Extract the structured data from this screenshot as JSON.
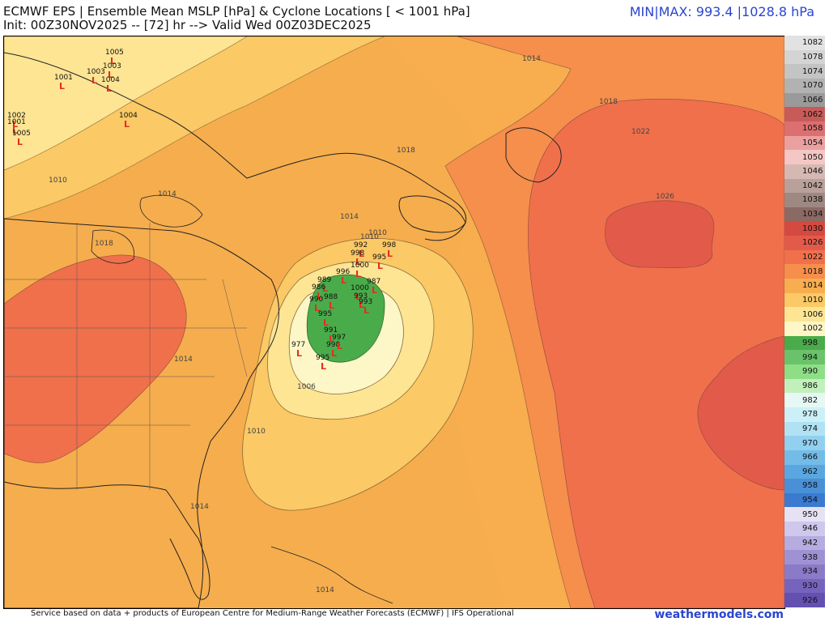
{
  "header": {
    "title": "ECMWF EPS | Ensemble Mean MSLP [hPa] & Cyclone Locations [ < 1001 hPa]",
    "init": "Init: 00Z30NOV2025 -- [72] hr --> Valid Wed 00Z03DEC2025",
    "minmax": "MIN|MAX: 993.4 |1028.8 hPa"
  },
  "footer": {
    "credit": "Service based on data + products of European Centre for Medium-Range Weather Forecasts (ECMWF) | IFS Operational",
    "brand": "weathermodels.com"
  },
  "colorbar": {
    "levels": [
      {
        "value": "1082",
        "color": "#e2e2e2"
      },
      {
        "value": "1078",
        "color": "#d4d4d4"
      },
      {
        "value": "1074",
        "color": "#c4c4c4"
      },
      {
        "value": "1070",
        "color": "#b2b2b2"
      },
      {
        "value": "1066",
        "color": "#9a9a9a"
      },
      {
        "value": "1062",
        "color": "#c85a5a"
      },
      {
        "value": "1058",
        "color": "#dc7070"
      },
      {
        "value": "1054",
        "color": "#eba0a0"
      },
      {
        "value": "1050",
        "color": "#f4c6c4"
      },
      {
        "value": "1046",
        "color": "#d6b8b2"
      },
      {
        "value": "1042",
        "color": "#baa09a"
      },
      {
        "value": "1038",
        "color": "#9e8882"
      },
      {
        "value": "1034",
        "color": "#8c6a64"
      },
      {
        "value": "1030",
        "color": "#d44a40"
      },
      {
        "value": "1026",
        "color": "#e25a4a"
      },
      {
        "value": "1022",
        "color": "#f0704c"
      },
      {
        "value": "1018",
        "color": "#f68e4c"
      },
      {
        "value": "1014",
        "color": "#f8ad4e"
      },
      {
        "value": "1010",
        "color": "#fbc965"
      },
      {
        "value": "1006",
        "color": "#fde594"
      },
      {
        "value": "1002",
        "color": "#fdf6c6"
      },
      {
        "value": "998",
        "color": "#4aab4a"
      },
      {
        "value": "994",
        "color": "#6ac26a"
      },
      {
        "value": "990",
        "color": "#8ede86"
      },
      {
        "value": "986",
        "color": "#c2f0bc"
      },
      {
        "value": "982",
        "color": "#e6f8f4"
      },
      {
        "value": "978",
        "color": "#ccf0f8"
      },
      {
        "value": "974",
        "color": "#b0e2f4"
      },
      {
        "value": "970",
        "color": "#92d0f0"
      },
      {
        "value": "966",
        "color": "#74bce8"
      },
      {
        "value": "962",
        "color": "#5aa6e0"
      },
      {
        "value": "958",
        "color": "#4a90d8"
      },
      {
        "value": "954",
        "color": "#3a7ad0"
      },
      {
        "value": "950",
        "color": "#e6e2f4"
      },
      {
        "value": "946",
        "color": "#cec8ec"
      },
      {
        "value": "942",
        "color": "#b6ace0"
      },
      {
        "value": "938",
        "color": "#9e92d4"
      },
      {
        "value": "934",
        "color": "#8a7ac8"
      },
      {
        "value": "930",
        "color": "#7664bc"
      },
      {
        "value": "926",
        "color": "#6450b0"
      }
    ]
  },
  "isobar_labels": [
    "1014",
    "1018",
    "1022",
    "1026",
    "1010",
    "1018",
    "1014",
    "1014",
    "1018",
    "1010",
    "1014",
    "1006",
    "1010",
    "1014",
    "1014",
    "1010"
  ],
  "cyclones": [
    {
      "value": "1005"
    },
    {
      "value": "1003"
    },
    {
      "value": "1003"
    },
    {
      "value": "1004"
    },
    {
      "value": "1001"
    },
    {
      "value": "1004"
    },
    {
      "value": "1002"
    },
    {
      "value": "1001"
    },
    {
      "value": "1005"
    },
    {
      "value": "992"
    },
    {
      "value": "998"
    },
    {
      "value": "998"
    },
    {
      "value": "995"
    },
    {
      "value": "1000"
    },
    {
      "value": "996"
    },
    {
      "value": "987"
    },
    {
      "value": "989"
    },
    {
      "value": "986"
    },
    {
      "value": "1000"
    },
    {
      "value": "993"
    },
    {
      "value": "988"
    },
    {
      "value": "990"
    },
    {
      "value": "993"
    },
    {
      "value": "977"
    },
    {
      "value": "998"
    },
    {
      "value": "991"
    },
    {
      "value": "997"
    },
    {
      "value": "995"
    },
    {
      "value": "995"
    }
  ],
  "colors": {
    "low_marker": "#e0301e",
    "minmax_text": "#2a45d0",
    "brand_text": "#2a45d0"
  }
}
